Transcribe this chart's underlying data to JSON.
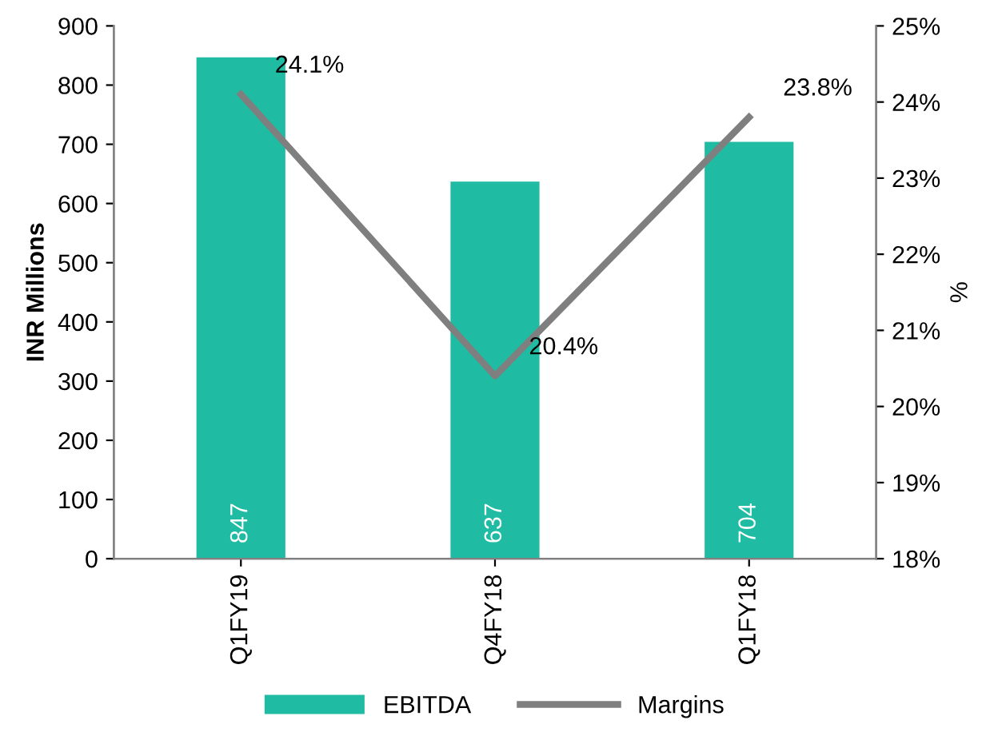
{
  "chart_data": {
    "type": "bar",
    "categories": [
      "Q1FY19",
      "Q4FY18",
      "Q1FY18"
    ],
    "ylabel": "INR Millions",
    "y2label": "%",
    "series": [
      {
        "name": "EBITDA",
        "color": "#20bba3",
        "values": [
          847,
          637,
          704
        ],
        "value_labels": [
          "847",
          "637",
          "704"
        ]
      },
      {
        "name": "Margins",
        "type": "line",
        "axis": "y2",
        "color": "#7f7f7f",
        "values": [
          24.1,
          20.4,
          23.8
        ],
        "value_labels": [
          "24.1%",
          "20.4%",
          "23.8%"
        ]
      }
    ],
    "ylim": [
      0,
      900
    ],
    "yticks": [
      0,
      100,
      200,
      300,
      400,
      500,
      600,
      700,
      800,
      900
    ],
    "y2lim": [
      18,
      25
    ],
    "y2ticks": [
      {
        "value": 18,
        "label": "18%"
      },
      {
        "value": 19,
        "label": "19%"
      },
      {
        "value": 20,
        "label": "20%"
      },
      {
        "value": 21,
        "label": "21%"
      },
      {
        "value": 22,
        "label": "22%"
      },
      {
        "value": 23,
        "label": "23%"
      },
      {
        "value": 24,
        "label": "24%"
      },
      {
        "value": 25,
        "label": "25%"
      }
    ],
    "grid": false,
    "legend": "bottom",
    "marker": "none",
    "line_style": "solid"
  }
}
